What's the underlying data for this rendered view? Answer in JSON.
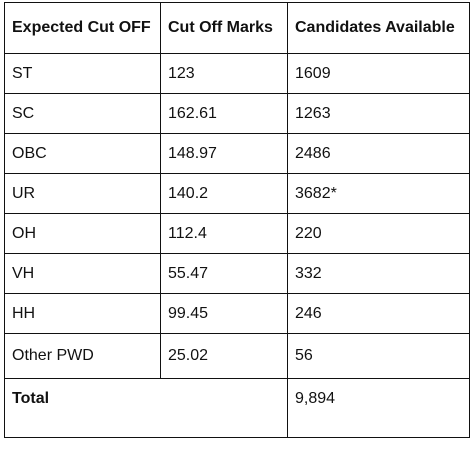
{
  "table": {
    "headers": [
      "Expected Cut OFF",
      "Cut Off Marks",
      "Candidates Available"
    ],
    "rows": [
      {
        "category": "ST",
        "marks": "123",
        "candidates": "1609"
      },
      {
        "category": "SC",
        "marks": "162.61",
        "candidates": "1263"
      },
      {
        "category": "OBC",
        "marks": "148.97",
        "candidates": "2486"
      },
      {
        "category": "UR",
        "marks": "140.2",
        "candidates": "3682*"
      },
      {
        "category": "OH",
        "marks": "112.4",
        "candidates": "220"
      },
      {
        "category": "VH",
        "marks": "55.47",
        "candidates": "332"
      },
      {
        "category": "HH",
        "marks": "99.45",
        "candidates": "246"
      },
      {
        "category": "Other PWD",
        "marks": "25.02",
        "candidates": "56"
      }
    ],
    "total": {
      "label": "Total",
      "value": "9,894"
    }
  },
  "colors": {
    "border": "#111111",
    "text": "#111111",
    "background": "#ffffff"
  }
}
